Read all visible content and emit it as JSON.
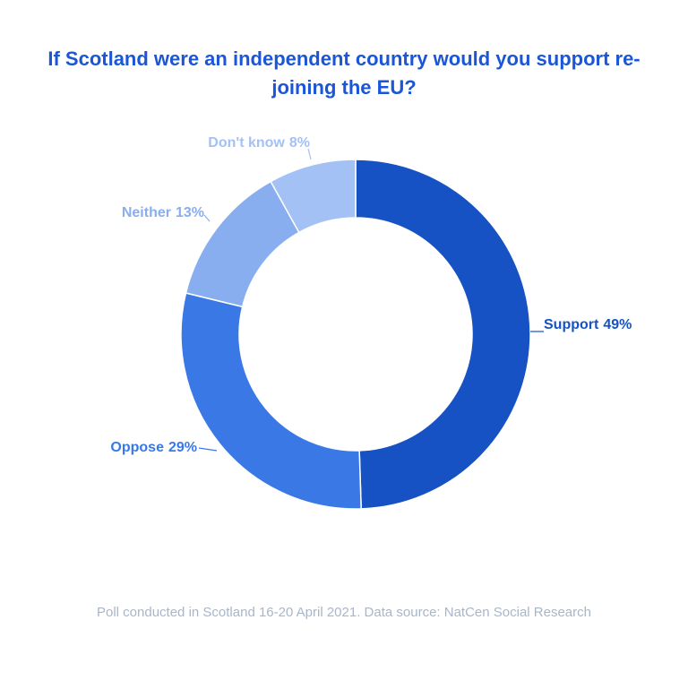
{
  "chart_data": {
    "type": "donut",
    "title": "If Scotland were an independent country would you support re-joining the EU?",
    "note": "Poll conducted in Scotland 16-20 April 2021. Data source: NatCen Social Research",
    "categories": [
      "Support",
      "Oppose",
      "Neither",
      "Don't know"
    ],
    "values": [
      49,
      29,
      13,
      8
    ],
    "value_labels": [
      "49%",
      "29%",
      "13%",
      "8%"
    ],
    "colors": [
      "#1652c4",
      "#3a78e6",
      "#88aef0",
      "#a4c1f5"
    ]
  }
}
